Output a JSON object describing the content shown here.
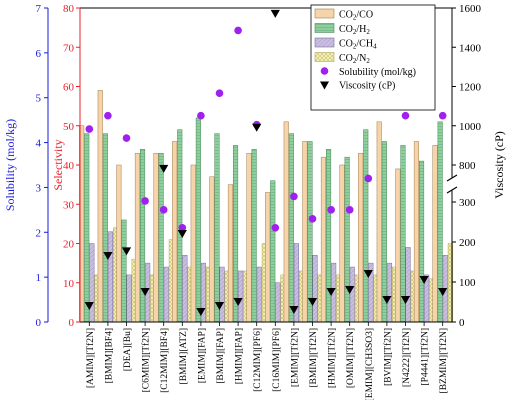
{
  "chart_data": {
    "type": "bar",
    "categories": [
      "[AMIM][Tf2N]",
      "[BMIM][BF4]",
      "[DEA][Bu]",
      "[C6MIM][Tf2N]",
      "[C12MIM][BF4]",
      "[BMIM][ATZ]",
      "[EMIM][FAP]",
      "[BMIM][FAP]",
      "[HMIM][FAP]",
      "[C12MIM][PF6]",
      "[C16MIM][PF6]",
      "[EMIM][Tf2N]",
      "[BMIM][Tf2N]",
      "[HMIM][Tf2N]",
      "[OMIM][Tf2N]",
      "[EMIM][CH3SO3]",
      "[BVIM][Tf2N]",
      "[N4222][Tf2N]",
      "[P4441][Tf2N]",
      "[BZMIM][Tf2N]"
    ],
    "left_axis_outer": {
      "label": "Solubility (mol/kg)",
      "min": 0,
      "max": 7,
      "ticks": [
        0,
        1,
        2,
        3,
        4,
        5,
        6,
        7
      ],
      "color": "#1a1adb"
    },
    "left_axis_inner": {
      "label": "Selectivity",
      "min": 0,
      "max": 80,
      "ticks": [
        0,
        10,
        20,
        30,
        40,
        50,
        60,
        70,
        80
      ],
      "color": "#e8202a"
    },
    "right_axis": {
      "label": "Viscosity (cP)",
      "break": true,
      "lower_ticks": [
        0,
        100,
        200,
        300
      ],
      "upper_ticks": [
        800,
        1000,
        1200,
        1400,
        1600
      ]
    },
    "series": [
      {
        "name": "CO2/CO",
        "key": "co",
        "fill": "#f6d3a8",
        "stroke": "#a08050",
        "values": [
          50,
          59,
          40,
          43,
          43,
          46,
          40,
          37,
          35,
          43,
          33,
          51,
          46,
          42,
          40,
          43,
          51,
          39,
          46,
          45
        ]
      },
      {
        "name": "CO2/H2",
        "key": "h2",
        "fill": "#8ecf9e",
        "stroke": "#4a8a5a",
        "values": [
          48,
          48,
          26,
          44,
          43,
          49,
          52,
          48,
          45,
          44,
          36,
          48,
          46,
          44,
          42,
          49,
          46,
          45,
          41,
          51
        ]
      },
      {
        "name": "CO2/CH4",
        "key": "ch4",
        "fill": "#cbbfe0",
        "stroke": "#7a6fa0",
        "values": [
          20,
          23,
          12,
          15,
          14,
          17,
          15,
          14,
          13,
          14,
          10,
          20,
          17,
          15,
          14,
          15,
          15,
          19,
          12,
          17
        ]
      },
      {
        "name": "CO2/N2",
        "key": "n2",
        "fill": "#f6f1b8",
        "stroke": "#b0a860",
        "values": [
          12,
          24,
          16,
          12,
          21,
          14,
          14,
          13,
          13,
          20,
          12,
          13,
          12,
          12,
          12,
          12,
          14,
          13,
          11,
          20
        ]
      }
    ],
    "solubility": {
      "name": "Solubility (mol/kg)",
      "color": "#a020f0",
      "values": [
        4.3,
        4.6,
        4.1,
        2.7,
        2.5,
        2.1,
        4.6,
        5.1,
        6.5,
        4.4,
        2.1,
        2.8,
        2.3,
        2.5,
        2.5,
        3.2,
        6.9,
        4.6,
        6.7,
        4.6
      ]
    },
    "viscosity": {
      "name": "Viscosity (cP)",
      "color": "#000000",
      "values": [
        40,
        165,
        360,
        75,
        780,
        220,
        25,
        40,
        50,
        990,
        1570,
        30,
        50,
        75,
        80,
        120,
        55,
        55,
        105,
        75
      ]
    },
    "legend_position": "top-right"
  }
}
